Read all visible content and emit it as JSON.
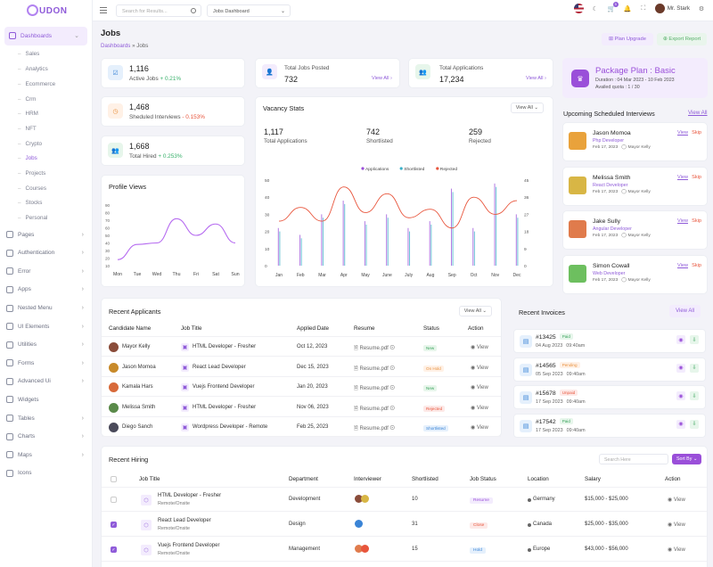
{
  "brand": {
    "name": "UDON"
  },
  "sidebar": {
    "dashboards": "Dashboards",
    "sub_items": [
      "Sales",
      "Analytics",
      "Ecommerce",
      "Crm",
      "HRM",
      "NFT",
      "Crypto",
      "Jobs",
      "Projects",
      "Courses",
      "Stocks",
      "Personal"
    ],
    "items": [
      "Pages",
      "Authentication",
      "Error",
      "Apps",
      "Nested Menu",
      "UI Elements",
      "Utilities",
      "Forms",
      "Advanced Ui",
      "Widgets",
      "Tables",
      "Charts",
      "Maps",
      "Icons"
    ]
  },
  "topbar": {
    "search_placeholder": "Search for Results...",
    "dashboard_select": "Jobs Dashboard",
    "notif_count": "5",
    "user": "Mr. Stark"
  },
  "header": {
    "title": "Jobs",
    "crumb_link": "Dashboards",
    "crumb_sep": "»",
    "crumb_current": "Jobs",
    "plan_upgrade": "Plan Upgrade",
    "export_report": "Export Report"
  },
  "stats": {
    "active_jobs": {
      "value": "1,116",
      "label": "Active Jobs",
      "trend": "+ 0.21%"
    },
    "sheduled": {
      "value": "1,468",
      "label": "Sheduled Interviews",
      "trend": "- 0.153%"
    },
    "total_hired": {
      "value": "1,668",
      "label": "Total Hired",
      "trend": "+ 0.253%"
    },
    "jobs_posted": {
      "label": "Total Jobs Posted",
      "value": "732",
      "link": "View All"
    },
    "applications": {
      "label": "Total Applications",
      "value": "17,234",
      "link": "View All"
    }
  },
  "plan": {
    "title": "Package Plan : Basic",
    "duration": "Duration : 04 Mar 2023 - 10 Feb 2023",
    "quota": "Availed quota : 1 / 30"
  },
  "upcoming": {
    "title": "Upcoming Scheduled Interviews",
    "view_all": "View All",
    "view": "View",
    "skip": "Skip",
    "items": [
      {
        "name": "Jason Momoa",
        "role": "Php Developer",
        "date": "Feb 17, 2023",
        "interviewer": "Mayor Kelly",
        "color": "#e9a23b"
      },
      {
        "name": "Melissa Smith",
        "role": "React Developer",
        "date": "Feb 17, 2023",
        "interviewer": "Mayor Kelly",
        "color": "#d8b645"
      },
      {
        "name": "Jake Sully",
        "role": "Angular Developer",
        "date": "Feb 17, 2023",
        "interviewer": "Mayor Kelly",
        "color": "#e07b4c"
      },
      {
        "name": "Simon Cowall",
        "role": "Web Developer",
        "date": "Feb 17, 2023",
        "interviewer": "Mayor Kelly",
        "color": "#6dbf5f"
      }
    ]
  },
  "profile_views": {
    "title": "Profile Views",
    "chart_data": {
      "type": "line",
      "categories": [
        "Mon",
        "Tue",
        "Wed",
        "Thu",
        "Fri",
        "Sat",
        "Sun"
      ],
      "values": [
        18,
        38,
        40,
        72,
        50,
        65,
        40
      ],
      "ylim": [
        10,
        90
      ],
      "yticks": [
        10,
        20,
        30,
        40,
        50,
        60,
        70,
        80,
        90
      ],
      "color": "#b56af0"
    }
  },
  "vacancy": {
    "title": "Vacancy Stats",
    "view_all": "View All",
    "totals": [
      {
        "value": "1,117",
        "label": "Total Applications"
      },
      {
        "value": "742",
        "label": "Shortlisted"
      },
      {
        "value": "259",
        "label": "Rejected"
      }
    ],
    "chart_data": {
      "type": "bar",
      "categories": [
        "Jan",
        "Feb",
        "Mar",
        "Apr",
        "May",
        "June",
        "July",
        "Aug",
        "Sep",
        "Oct",
        "Nov",
        "Dec"
      ],
      "ylim_left": [
        0,
        50
      ],
      "yticks_left": [
        0,
        10,
        20,
        30,
        40,
        50
      ],
      "ylim_right": [
        0,
        45
      ],
      "yticks_right": [
        0,
        9,
        18,
        27,
        36,
        45
      ],
      "legend_position": "top",
      "series": [
        {
          "name": "Applications",
          "color": "#9a4fd9",
          "type": "bar",
          "values": [
            22,
            18,
            30,
            38,
            26,
            30,
            22,
            26,
            45,
            22,
            48,
            30
          ]
        },
        {
          "name": "Shortlisted",
          "color": "#3ab0c8",
          "type": "bar",
          "values": [
            20,
            16,
            28,
            36,
            24,
            28,
            20,
            24,
            43,
            20,
            46,
            28
          ]
        },
        {
          "name": "Rejected",
          "color": "#e8553c",
          "type": "line",
          "values": [
            26,
            34,
            26,
            46,
            31,
            42,
            28,
            33,
            22,
            40,
            30,
            38
          ]
        }
      ]
    }
  },
  "applicants": {
    "title": "Recent Applicants",
    "view_all": "View All",
    "columns": [
      "Candidate Name",
      "Job Title",
      "Applied Date",
      "Resume",
      "Status",
      "Action"
    ],
    "rows": [
      {
        "name": "Mayor Kelly",
        "job": "HTML Developer - Fresher",
        "date": "Oct 12, 2023",
        "resume": "Resume.pdf",
        "status": "New",
        "scls": "s-new",
        "action": "View",
        "color": "#8a4c3a"
      },
      {
        "name": "Jason Momoa",
        "job": "React Lead Developer",
        "date": "Dec 15, 2023",
        "resume": "Resume.pdf",
        "status": "On Hold",
        "scls": "s-hold",
        "action": "View",
        "color": "#c88a2a"
      },
      {
        "name": "Kamala Hars",
        "job": "Vuejs Frontend Developer",
        "date": "Jan 20, 2023",
        "resume": "Resume.pdf",
        "status": "New",
        "scls": "s-new",
        "action": "View",
        "color": "#d86a3a"
      },
      {
        "name": "Melissa Smith",
        "job": "HTML Developer - Fresher",
        "date": "Nov 06, 2023",
        "resume": "Resume.pdf",
        "status": "Rejected",
        "scls": "s-rej",
        "action": "View",
        "color": "#5a8a4a"
      },
      {
        "name": "Diego Sanch",
        "job": "Wordpress Developer - Remote",
        "date": "Feb 25, 2023",
        "resume": "Resume.pdf",
        "status": "Shortlisted",
        "scls": "s-short",
        "action": "View",
        "color": "#4a4a5a"
      }
    ]
  },
  "invoices": {
    "title": "Recent Invoices",
    "view_all": "View All",
    "items": [
      {
        "id": "#13425",
        "status": "Paid",
        "cls": "s-new",
        "date": "04 Aug 2023",
        "time": "09:40am"
      },
      {
        "id": "#14565",
        "status": "Pending",
        "cls": "s-hold",
        "date": "05 Sep 2023",
        "time": "09:40am"
      },
      {
        "id": "#15678",
        "status": "Unpaid",
        "cls": "s-rej",
        "date": "17 Sep 2023",
        "time": "09:40am"
      },
      {
        "id": "#17542",
        "status": "Paid",
        "cls": "s-new",
        "date": "17 Sep 2023",
        "time": "09:40am"
      }
    ]
  },
  "hiring": {
    "title": "Recent Hiring",
    "search_placeholder": "Search Here",
    "sort_by": "Sort By",
    "columns": [
      "Job Title",
      "Department",
      "Interviewer",
      "Shortlisted",
      "Job Status",
      "Location",
      "Salary",
      "Action"
    ],
    "rows": [
      {
        "title": "HTML Developer - Fresher",
        "mode": "Remote/Onsite",
        "dept": "Development",
        "short": "10",
        "status": "Resume",
        "scls": "c-res",
        "loc": "Germany",
        "salary": "$15,000 - $25,000",
        "action": "View",
        "checked": false
      },
      {
        "title": "React Lead Developer",
        "mode": "Remote/Onsite",
        "dept": "Design",
        "short": "31",
        "status": "Close",
        "scls": "c-close",
        "loc": "Canada",
        "salary": "$25,000 - $35,000",
        "action": "View",
        "checked": true
      },
      {
        "title": "Vuejs Frontend Developer",
        "mode": "Remote/Onsite",
        "dept": "Management",
        "short": "15",
        "status": "Hold",
        "scls": "c-hold",
        "loc": "Europe",
        "salary": "$43,000 - $56,000",
        "action": "View",
        "checked": true
      }
    ]
  }
}
